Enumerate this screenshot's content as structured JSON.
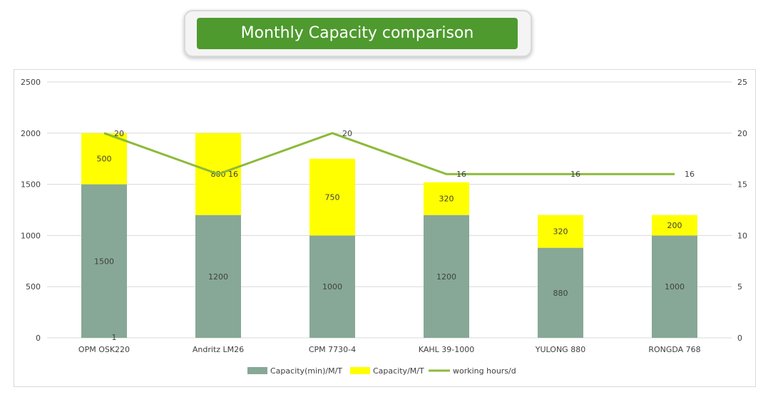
{
  "title": "Monthly Capacity  comparison",
  "colors": {
    "title_bg": "#4e9a2e",
    "min_capacity": "#87a896",
    "extra_capacity": "#ffff00",
    "hours_line": "#8cba38",
    "grid": "#d9d9d9",
    "text": "#404040"
  },
  "chart_data": {
    "type": "bar",
    "stacked": true,
    "categories": [
      "OPM OSK220",
      "Andritz LM26",
      "CPM 7730-4",
      "KAHL 39-1000",
      "YULONG 880",
      "RONGDA 768"
    ],
    "series": [
      {
        "name": "Capacity(min)/M/T",
        "type": "bar",
        "axis": "left",
        "values": [
          1500,
          1200,
          1000,
          1200,
          880,
          1000
        ]
      },
      {
        "name": "Capacity/M/T",
        "type": "bar",
        "axis": "left",
        "values": [
          500,
          800,
          750,
          320,
          320,
          200
        ]
      },
      {
        "name": "working hours/d",
        "type": "line",
        "axis": "right",
        "values": [
          20,
          16,
          20,
          16,
          16,
          16
        ]
      }
    ],
    "ylim": [
      0,
      2500
    ],
    "yticks": [
      0,
      500,
      1000,
      1500,
      2000,
      2500
    ],
    "y2lim": [
      0,
      25
    ],
    "y2ticks": [
      0,
      5,
      10,
      15,
      20,
      25
    ],
    "annotation": "1",
    "legend": "bottom",
    "grid": true
  }
}
